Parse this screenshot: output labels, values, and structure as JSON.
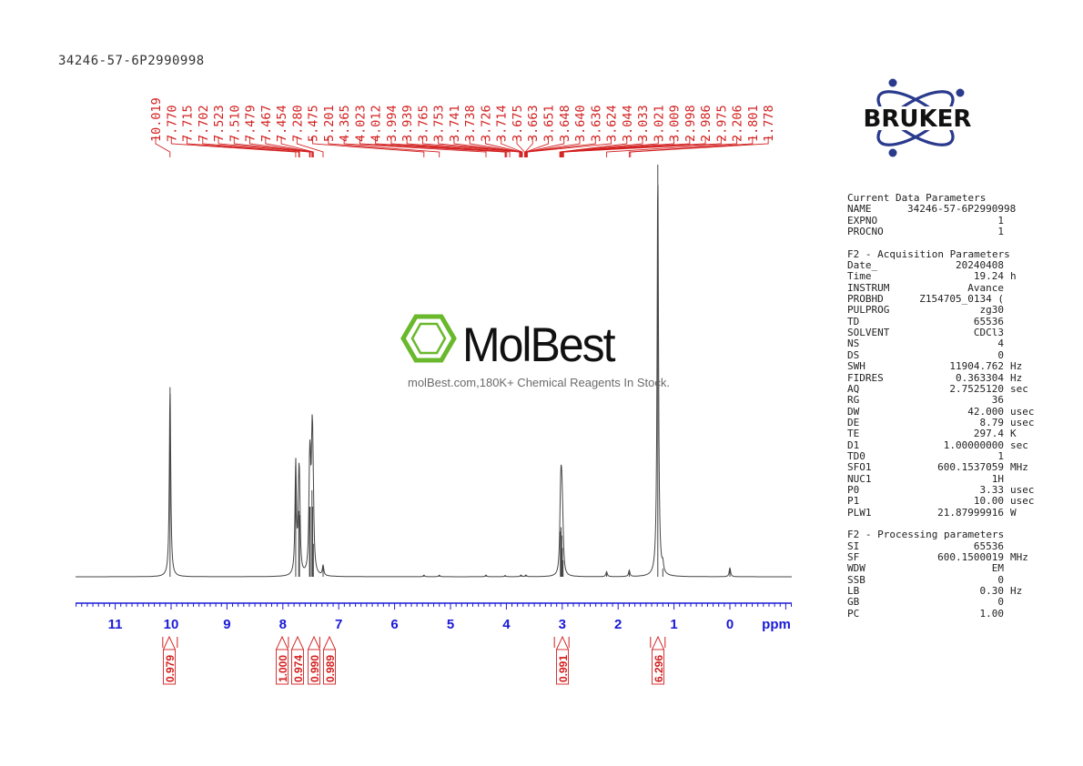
{
  "sample_title": "34246-57-6P2990998",
  "watermark": {
    "brand": "MolBest",
    "tagline": "molBest.com,180K+ Chemical Reagents In Stock."
  },
  "bruker_logo": "BRUKER",
  "colors": {
    "peak_labels": "#d32020",
    "axis": "#1a1ad6",
    "spectrum": "#444444",
    "logo": "#2a3a8c",
    "watermark": "#6ab82c"
  },
  "chart_data": {
    "type": "line",
    "title": "",
    "xlabel": "ppm",
    "ylabel": "",
    "x_reversed": true,
    "xlim": [
      -1.1,
      11.8
    ],
    "x_ticks": [
      11,
      10,
      9,
      8,
      7,
      6,
      5,
      4,
      3,
      2,
      1,
      0
    ],
    "x_tick_labels": [
      "11",
      "10",
      "9",
      "8",
      "7",
      "6",
      "5",
      "4",
      "3",
      "2",
      "1",
      "0"
    ],
    "peak_labels": [
      "10.019",
      "7.770",
      "7.715",
      "7.702",
      "7.523",
      "7.510",
      "7.479",
      "7.467",
      "7.454",
      "7.280",
      "5.475",
      "5.201",
      "4.365",
      "4.023",
      "4.012",
      "3.994",
      "3.939",
      "3.765",
      "3.753",
      "3.741",
      "3.738",
      "3.726",
      "3.714",
      "3.675",
      "3.663",
      "3.651",
      "3.648",
      "3.640",
      "3.636",
      "3.624",
      "3.044",
      "3.033",
      "3.021",
      "3.009",
      "2.998",
      "2.986",
      "2.975",
      "2.206",
      "1.801",
      "1.778"
    ],
    "peaks": [
      {
        "x": 10.019,
        "y": 0.46
      },
      {
        "x": 7.77,
        "y": 0.27
      },
      {
        "x": 7.715,
        "y": 0.16
      },
      {
        "x": 7.702,
        "y": 0.15
      },
      {
        "x": 7.523,
        "y": 0.17
      },
      {
        "x": 7.51,
        "y": 0.17
      },
      {
        "x": 7.479,
        "y": 0.21
      },
      {
        "x": 7.467,
        "y": 0.17
      },
      {
        "x": 7.454,
        "y": 0.08
      },
      {
        "x": 7.28,
        "y": 0.025
      },
      {
        "x": 5.475,
        "y": 0.004
      },
      {
        "x": 5.201,
        "y": 0.004
      },
      {
        "x": 4.365,
        "y": 0.004
      },
      {
        "x": 4.023,
        "y": 0.003
      },
      {
        "x": 3.74,
        "y": 0.004
      },
      {
        "x": 3.65,
        "y": 0.004
      },
      {
        "x": 3.033,
        "y": 0.11
      },
      {
        "x": 3.021,
        "y": 0.12
      },
      {
        "x": 3.009,
        "y": 0.1
      },
      {
        "x": 2.998,
        "y": 0.07
      },
      {
        "x": 2.986,
        "y": 0.04
      },
      {
        "x": 2.206,
        "y": 0.012
      },
      {
        "x": 1.801,
        "y": 0.015
      },
      {
        "x": 1.29,
        "y": 1.0
      },
      {
        "x": 1.2,
        "y": 0.02
      },
      {
        "x": 0.0,
        "y": 0.022
      }
    ],
    "integrals": [
      {
        "center": 10.02,
        "label": "0.979"
      },
      {
        "center": 7.77,
        "label": "1.000"
      },
      {
        "center": 7.71,
        "label": "0.974"
      },
      {
        "center": 7.52,
        "label": "0.990"
      },
      {
        "center": 7.47,
        "label": "0.989"
      },
      {
        "center": 3.01,
        "label": "0.991"
      },
      {
        "center": 1.29,
        "label": "6.296"
      }
    ]
  },
  "parameters": {
    "current": {
      "title": "Current Data Parameters",
      "rows": [
        {
          "k": "NAME",
          "v": "34246-57-6P2990998",
          "u": ""
        },
        {
          "k": "EXPNO",
          "v": "1",
          "u": ""
        },
        {
          "k": "PROCNO",
          "v": "1",
          "u": ""
        }
      ]
    },
    "acquisition": {
      "title": "F2 - Acquisition Parameters",
      "rows": [
        {
          "k": "Date_",
          "v": "20240408",
          "u": ""
        },
        {
          "k": "Time",
          "v": "19.24",
          "u": "h"
        },
        {
          "k": "INSTRUM",
          "v": "Avance",
          "u": ""
        },
        {
          "k": "PROBHD",
          "v": "Z154705_0134 (",
          "u": ""
        },
        {
          "k": "PULPROG",
          "v": "zg30",
          "u": ""
        },
        {
          "k": "TD",
          "v": "65536",
          "u": ""
        },
        {
          "k": "SOLVENT",
          "v": "CDCl3",
          "u": ""
        },
        {
          "k": "NS",
          "v": "4",
          "u": ""
        },
        {
          "k": "DS",
          "v": "0",
          "u": ""
        },
        {
          "k": "SWH",
          "v": "11904.762",
          "u": "Hz"
        },
        {
          "k": "FIDRES",
          "v": "0.363304",
          "u": "Hz"
        },
        {
          "k": "AQ",
          "v": "2.7525120",
          "u": "sec"
        },
        {
          "k": "RG",
          "v": "36",
          "u": ""
        },
        {
          "k": "DW",
          "v": "42.000",
          "u": "usec"
        },
        {
          "k": "DE",
          "v": "8.79",
          "u": "usec"
        },
        {
          "k": "TE",
          "v": "297.4",
          "u": "K"
        },
        {
          "k": "D1",
          "v": "1.00000000",
          "u": "sec"
        },
        {
          "k": "TD0",
          "v": "1",
          "u": ""
        },
        {
          "k": "SFO1",
          "v": "600.1537059",
          "u": "MHz"
        },
        {
          "k": "NUC1",
          "v": "1H",
          "u": ""
        },
        {
          "k": "P0",
          "v": "3.33",
          "u": "usec"
        },
        {
          "k": "P1",
          "v": "10.00",
          "u": "usec"
        },
        {
          "k": "PLW1",
          "v": "21.87999916",
          "u": "W"
        }
      ]
    },
    "processing": {
      "title": "F2 - Processing parameters",
      "rows": [
        {
          "k": "SI",
          "v": "65536",
          "u": ""
        },
        {
          "k": "SF",
          "v": "600.1500019",
          "u": "MHz"
        },
        {
          "k": "WDW",
          "v": "EM",
          "u": ""
        },
        {
          "k": "SSB",
          "v": "0",
          "u": ""
        },
        {
          "k": "LB",
          "v": "0.30",
          "u": "Hz"
        },
        {
          "k": "GB",
          "v": "0",
          "u": ""
        },
        {
          "k": "PC",
          "v": "1.00",
          "u": ""
        }
      ]
    }
  }
}
